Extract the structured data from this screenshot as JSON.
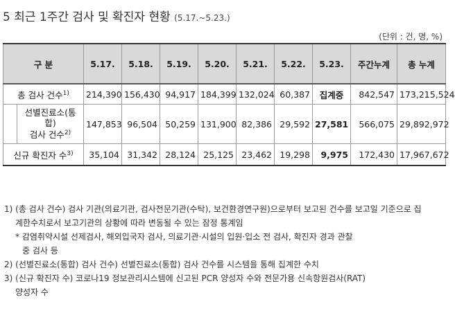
{
  "title": {
    "main": "5 최근 1주간 검사 및 확진자 현황",
    "sub": "(5.17.~5.23.)"
  },
  "unit": "(단위 : 건, 명, %)",
  "table": {
    "headers": {
      "category": "구 분",
      "dates": [
        "5.17.",
        "5.18.",
        "5.19.",
        "5.20.",
        "5.21.",
        "5.22.",
        "5.23."
      ],
      "weekly": "주간누계",
      "total": "총 누계"
    },
    "rows": [
      {
        "label": "총 검사 건수",
        "sup": "1)",
        "values": [
          "214,390",
          "156,430",
          "94,917",
          "184,399",
          "132,024",
          "60,387",
          "집계중",
          "842,547",
          "173,215,524"
        ]
      },
      {
        "label_line1": "선별진료소(통",
        "label_line2": "합)",
        "label_line3": "검사 건수",
        "sup": "2)",
        "values": [
          "147,853",
          "96,504",
          "50,259",
          "131,900",
          "82,386",
          "29,592",
          "27,581",
          "566,075",
          "29,892,972"
        ]
      },
      {
        "label": "신규 확진자 수",
        "sup": "3)",
        "values": [
          "35,104",
          "31,342",
          "28,124",
          "25,125",
          "23,462",
          "19,298",
          "9,975",
          "172,430",
          "17,967,672"
        ]
      }
    ]
  },
  "notes": {
    "n1_line1": "1) (총 검사 건수) 검사 기관(의료기관, 검사전문기관(수탁), 보건환경연구원)으로부터 보고된 건수를 보고일 기준으로 집",
    "n1_line2": "계한수치로서 보고기관의 상황에 따라 변동될 수 있는 잠정 통계임",
    "n1_star_line1": "* 감염취약시설 선제검사, 해외입국자 검사, 의료기관·시설의 입원·입소 전 검사, 확진자 경과 관찰",
    "n1_star_line2": "중 검사 등",
    "n2": "2) (선별진료소(통합) 검사 건수) 선별진료소(통합) 검사 건수를 시스템을 통해 집계한 수치",
    "n3_line1": "3) (신규 확진자 수) 코로나19 정보관리시스템에 신고된 PCR 양성자 수와 전문가용 신속항원검사(RAT)",
    "n3_line2": "양성자 수"
  }
}
